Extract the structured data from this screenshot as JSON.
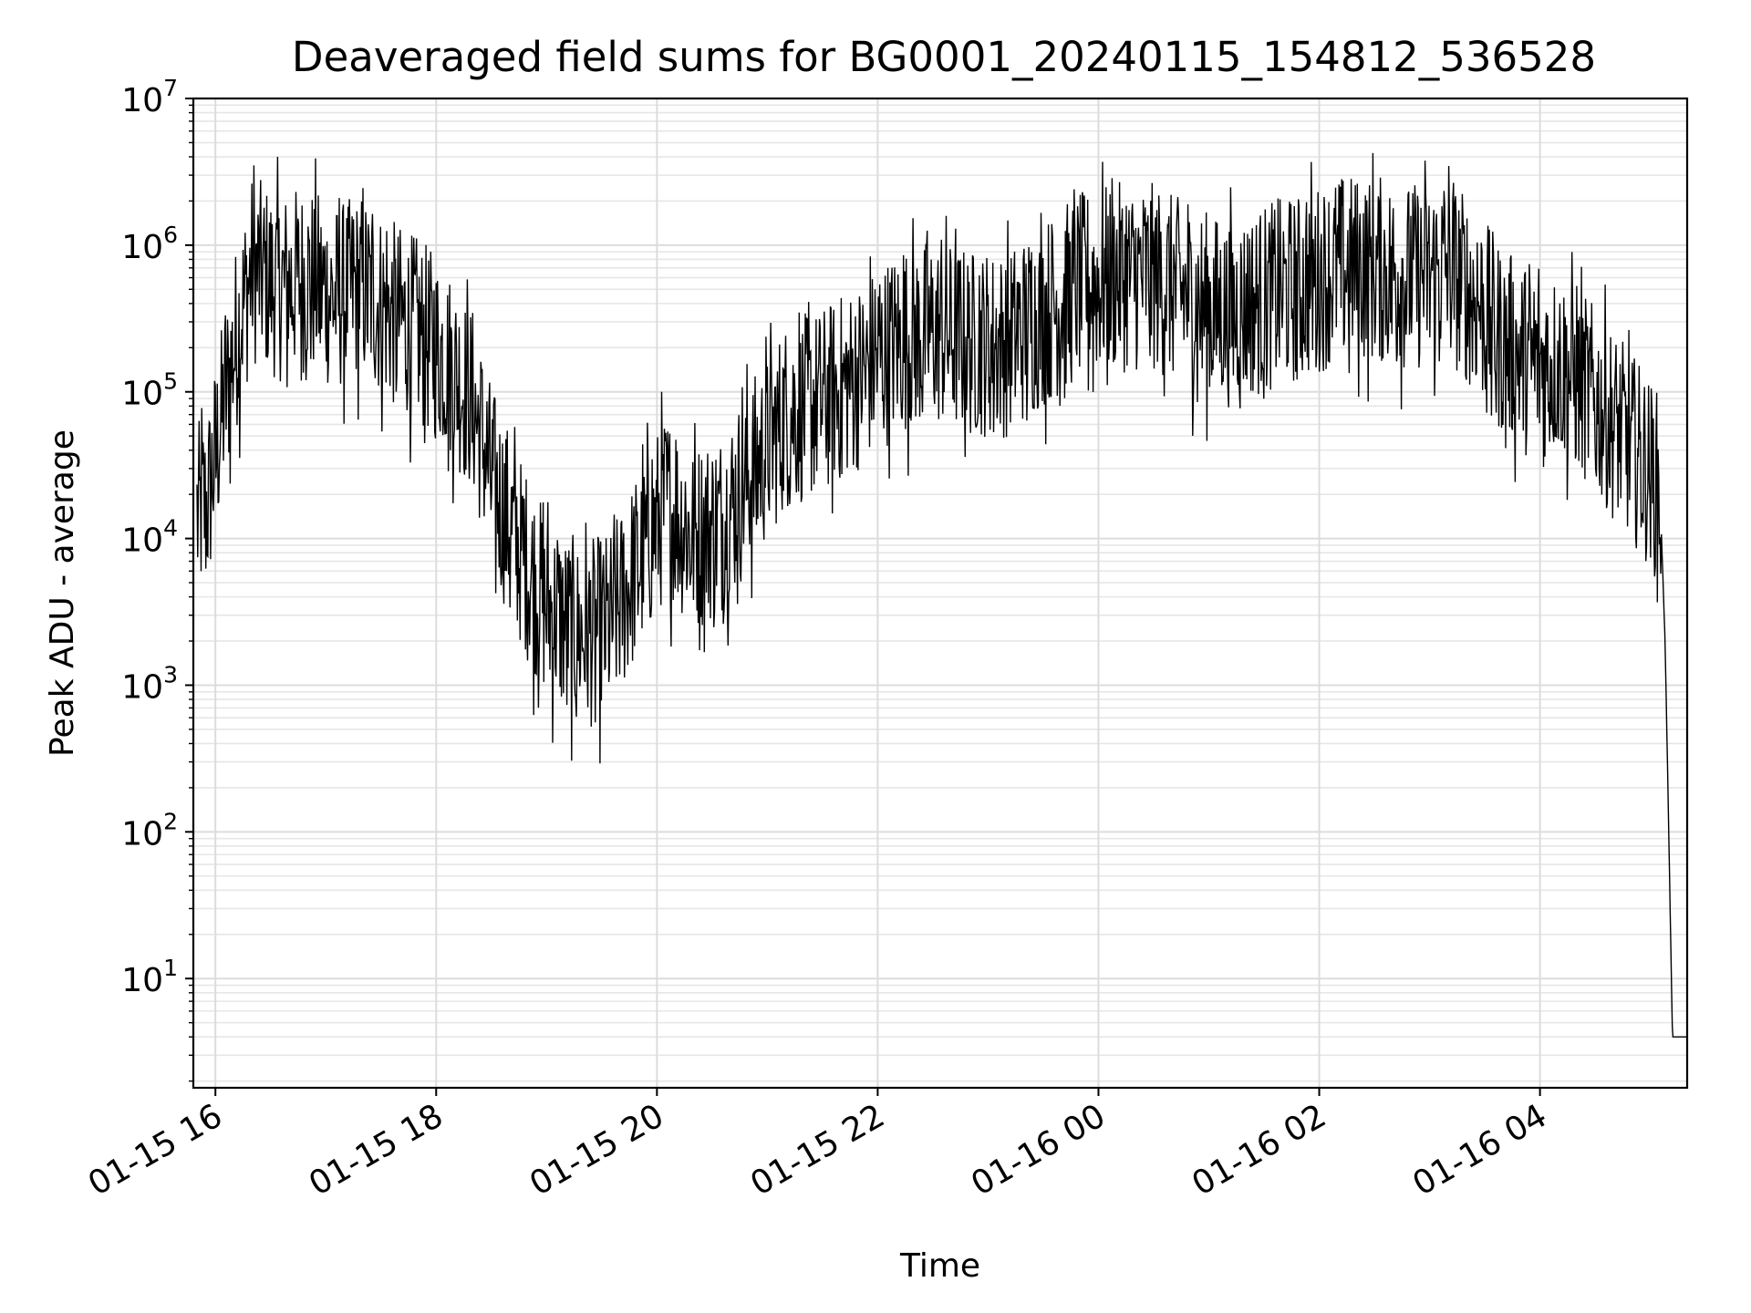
{
  "chart_data": {
    "type": "line",
    "title": "Deaveraged field sums for BG0001_20240115_154812_536528",
    "xlabel": "Time",
    "ylabel": "Peak ADU - average",
    "yscale": "log",
    "ylim": [
      1.8,
      10000000
    ],
    "xlim": [
      "2024-01-15 15:48",
      "2024-01-16 05:20"
    ],
    "grid": "major and minor",
    "line_color": "#000000",
    "x_ticks": [
      {
        "time": "2024-01-15 16:00",
        "label": "01-15 16"
      },
      {
        "time": "2024-01-15 18:00",
        "label": "01-15 18"
      },
      {
        "time": "2024-01-15 20:00",
        "label": "01-15 20"
      },
      {
        "time": "2024-01-15 22:00",
        "label": "01-15 22"
      },
      {
        "time": "2024-01-16 00:00",
        "label": "01-16 00"
      },
      {
        "time": "2024-01-16 02:00",
        "label": "01-16 02"
      },
      {
        "time": "2024-01-16 04:00",
        "label": "01-16 04"
      }
    ],
    "y_ticks": [
      {
        "value": 10,
        "base": "10",
        "exp": "1"
      },
      {
        "value": 100,
        "base": "10",
        "exp": "2"
      },
      {
        "value": 1000,
        "base": "10",
        "exp": "3"
      },
      {
        "value": 10000,
        "base": "10",
        "exp": "4"
      },
      {
        "value": 100000,
        "base": "10",
        "exp": "5"
      },
      {
        "value": 1000000,
        "base": "10",
        "exp": "6"
      },
      {
        "value": 10000000,
        "base": "10",
        "exp": "7"
      }
    ],
    "series": [
      {
        "x": [
          "2024-01-15 15:50",
          "2024-01-15 15:53",
          "2024-01-15 15:55",
          "2024-01-15 15:58",
          "2024-01-15 16:05",
          "2024-01-15 16:12",
          "2024-01-15 16:20",
          "2024-01-15 16:35",
          "2024-01-15 16:50",
          "2024-01-15 17:05",
          "2024-01-15 17:20",
          "2024-01-15 17:35",
          "2024-01-15 17:50",
          "2024-01-15 18:05",
          "2024-01-15 18:20",
          "2024-01-15 18:30",
          "2024-01-15 18:45",
          "2024-01-15 19:00",
          "2024-01-15 19:10",
          "2024-01-15 19:20",
          "2024-01-15 19:35",
          "2024-01-15 19:50",
          "2024-01-15 20:05",
          "2024-01-15 20:20",
          "2024-01-15 20:35",
          "2024-01-15 20:50",
          "2024-01-15 21:10",
          "2024-01-15 21:30",
          "2024-01-15 21:50",
          "2024-01-15 22:10",
          "2024-01-15 22:30",
          "2024-01-15 22:50",
          "2024-01-15 23:10",
          "2024-01-15 23:30",
          "2024-01-15 23:50",
          "2024-01-16 00:10",
          "2024-01-16 00:30",
          "2024-01-16 00:50",
          "2024-01-16 01:10",
          "2024-01-16 01:30",
          "2024-01-16 01:50",
          "2024-01-16 02:10",
          "2024-01-16 02:30",
          "2024-01-16 02:50",
          "2024-01-16 03:10",
          "2024-01-16 03:25",
          "2024-01-16 03:40",
          "2024-01-16 03:55",
          "2024-01-16 04:10",
          "2024-01-16 04:25",
          "2024-01-16 04:40",
          "2024-01-16 04:55",
          "2024-01-16 05:05",
          "2024-01-16 05:08",
          "2024-01-16 05:10",
          "2024-01-16 05:12",
          "2024-01-16 05:20"
        ],
        "y": [
          15000,
          20000,
          18000,
          30000,
          100000,
          300000,
          800000,
          600000,
          700000,
          500000,
          600000,
          400000,
          300000,
          200000,
          100000,
          30000,
          10000,
          4000,
          3000,
          2500,
          3000,
          8000,
          20000,
          12000,
          15000,
          30000,
          80000,
          100000,
          150000,
          250000,
          300000,
          250000,
          250000,
          400000,
          600000,
          700000,
          700000,
          500000,
          400000,
          500000,
          600000,
          800000,
          800000,
          700000,
          800000,
          500000,
          250000,
          180000,
          180000,
          120000,
          70000,
          40000,
          25000,
          2000,
          100,
          4,
          4
        ]
      }
    ]
  }
}
